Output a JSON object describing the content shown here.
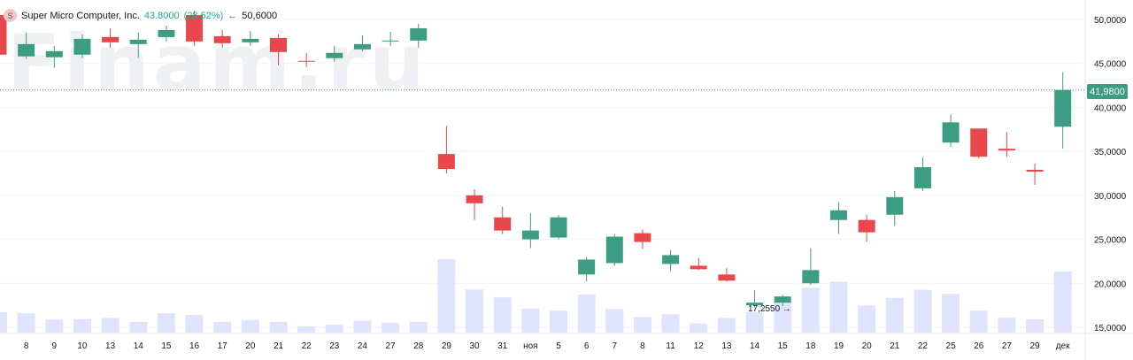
{
  "legend": {
    "symbol_icon": "S",
    "name": "Super Micro Computer, Inc.",
    "price": "43.8000",
    "change": "(28.52%)",
    "arrow": "←",
    "high": "50,6000"
  },
  "watermark": "Finam.ru",
  "current_price_label": "41,9800",
  "low_marker_label": "17,2550 →",
  "chart_data": {
    "type": "candlestick",
    "title": "",
    "xlabel": "",
    "ylabel": "",
    "ylim": [
      14500,
      51500
    ],
    "y_ticks": [
      15000,
      20000,
      25000,
      30000,
      35000,
      40000,
      45000,
      50000
    ],
    "y_tick_labels": [
      "15,0000",
      "20,0000",
      "25,0000",
      "30,0000",
      "35,0000",
      "40,0000",
      "45,0000",
      "50,0000"
    ],
    "current_price": 41980,
    "colors": {
      "up": "#3d9d82",
      "down": "#e8474b",
      "volume": "#dfe3fb",
      "price_line": "#3d9d82"
    },
    "candles": [
      {
        "label": "",
        "open": 50500,
        "high": 51000,
        "low": 46000,
        "close": 46000
      },
      {
        "label": "8",
        "open": 45800,
        "high": 48500,
        "low": 45500,
        "close": 47200
      },
      {
        "label": "9",
        "open": 45700,
        "high": 47000,
        "low": 44500,
        "close": 46400
      },
      {
        "label": "10",
        "open": 46000,
        "high": 48300,
        "low": 45600,
        "close": 47800
      },
      {
        "label": "13",
        "open": 48000,
        "high": 49000,
        "low": 46800,
        "close": 47400
      },
      {
        "label": "14",
        "open": 47200,
        "high": 48500,
        "low": 45600,
        "close": 47700
      },
      {
        "label": "15",
        "open": 48000,
        "high": 49300,
        "low": 47500,
        "close": 48800
      },
      {
        "label": "16",
        "open": 50500,
        "high": 51000,
        "low": 47000,
        "close": 47500
      },
      {
        "label": "17",
        "open": 48100,
        "high": 48800,
        "low": 46800,
        "close": 47300
      },
      {
        "label": "20",
        "open": 47400,
        "high": 48700,
        "low": 47000,
        "close": 47800
      },
      {
        "label": "21",
        "open": 47900,
        "high": 48300,
        "low": 44800,
        "close": 46300
      },
      {
        "label": "22",
        "open": 45300,
        "high": 46200,
        "low": 44600,
        "close": 45200
      },
      {
        "label": "23",
        "open": 45600,
        "high": 47000,
        "low": 45200,
        "close": 46200
      },
      {
        "label": "24",
        "open": 46600,
        "high": 48200,
        "low": 46400,
        "close": 47200
      },
      {
        "label": "27",
        "open": 47500,
        "high": 48600,
        "low": 47000,
        "close": 47600
      },
      {
        "label": "28",
        "open": 47600,
        "high": 49500,
        "low": 46800,
        "close": 49000
      },
      {
        "label": "29",
        "open": 34700,
        "high": 37900,
        "low": 32500,
        "close": 33000
      },
      {
        "label": "30",
        "open": 30000,
        "high": 30700,
        "low": 27200,
        "close": 29100
      },
      {
        "label": "31",
        "open": 27500,
        "high": 28700,
        "low": 25600,
        "close": 26000
      },
      {
        "label": "ноя",
        "open": 25000,
        "high": 28000,
        "low": 24000,
        "close": 26000
      },
      {
        "label": "5",
        "open": 25200,
        "high": 27800,
        "low": 25000,
        "close": 27500
      },
      {
        "label": "6",
        "open": 21000,
        "high": 23000,
        "low": 20200,
        "close": 22700
      },
      {
        "label": "7",
        "open": 22300,
        "high": 25600,
        "low": 22000,
        "close": 25300
      },
      {
        "label": "8",
        "open": 25700,
        "high": 26100,
        "low": 23900,
        "close": 24700
      },
      {
        "label": "11",
        "open": 22200,
        "high": 23800,
        "low": 21400,
        "close": 23200
      },
      {
        "label": "12",
        "open": 22000,
        "high": 22900,
        "low": 21500,
        "close": 21600
      },
      {
        "label": "13",
        "open": 21000,
        "high": 21700,
        "low": 20200,
        "close": 20300
      },
      {
        "label": "14",
        "open": 17500,
        "high": 19200,
        "low": 17255,
        "close": 17800
      },
      {
        "label": "15",
        "open": 17800,
        "high": 18700,
        "low": 17400,
        "close": 18500
      },
      {
        "label": "18",
        "open": 20000,
        "high": 24000,
        "low": 19800,
        "close": 21500
      },
      {
        "label": "19",
        "open": 27200,
        "high": 29200,
        "low": 25600,
        "close": 28300
      },
      {
        "label": "20",
        "open": 27200,
        "high": 27800,
        "low": 24700,
        "close": 25800
      },
      {
        "label": "21",
        "open": 27800,
        "high": 30500,
        "low": 26500,
        "close": 29800
      },
      {
        "label": "22",
        "open": 30800,
        "high": 34300,
        "low": 30500,
        "close": 33200
      },
      {
        "label": "25",
        "open": 36000,
        "high": 39200,
        "low": 35500,
        "close": 38300
      },
      {
        "label": "26",
        "open": 37600,
        "high": 37600,
        "low": 34200,
        "close": 34400
      },
      {
        "label": "27",
        "open": 35300,
        "high": 37200,
        "low": 34400,
        "close": 35100
      },
      {
        "label": "29",
        "open": 32900,
        "high": 33600,
        "low": 31200,
        "close": 32700
      },
      {
        "label": "дек",
        "open": 37800,
        "high": 44000,
        "low": 35300,
        "close": 41980
      }
    ],
    "volume_levels": [
      1.0,
      0.95,
      0.64,
      0.66,
      0.72,
      0.53,
      0.95,
      0.86,
      0.53,
      0.62,
      0.53,
      0.3,
      0.38,
      0.58,
      0.47,
      0.53,
      3.6,
      2.12,
      1.73,
      1.18,
      1.08,
      1.87,
      1.15,
      0.76,
      0.9,
      0.45,
      0.72,
      1.0,
      1.56,
      2.2,
      2.5,
      1.33,
      1.7,
      2.1,
      1.9,
      1.08,
      0.73,
      0.65,
      3.0
    ]
  }
}
